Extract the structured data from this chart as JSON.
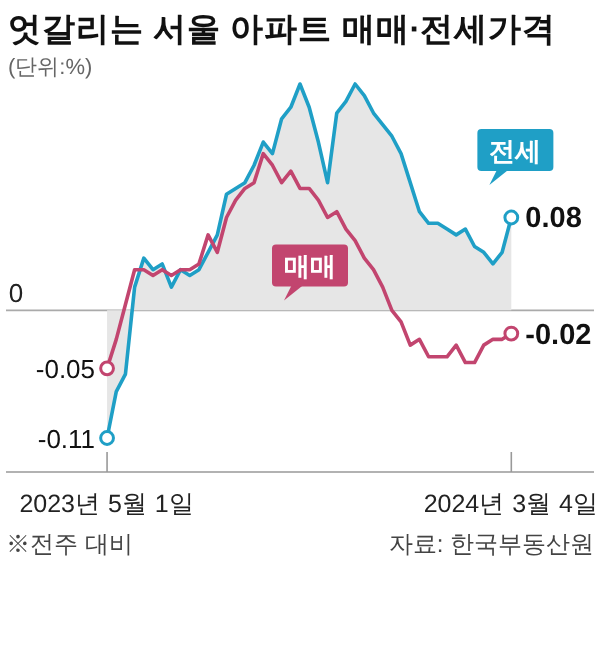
{
  "chart_data": {
    "type": "line",
    "title": "엇갈리는 서울 아파트 매매·전세가격",
    "subtitle": "(단위:%)",
    "x": [
      "2023-05-01",
      "2023-05-08",
      "2023-05-15",
      "2023-05-22",
      "2023-05-29",
      "2023-06-05",
      "2023-06-12",
      "2023-06-19",
      "2023-06-26",
      "2023-07-03",
      "2023-07-10",
      "2023-07-17",
      "2023-07-24",
      "2023-07-31",
      "2023-08-07",
      "2023-08-14",
      "2023-08-21",
      "2023-08-28",
      "2023-09-04",
      "2023-09-11",
      "2023-09-18",
      "2023-09-25",
      "2023-10-02",
      "2023-10-09",
      "2023-10-16",
      "2023-10-23",
      "2023-10-30",
      "2023-11-06",
      "2023-11-13",
      "2023-11-20",
      "2023-11-27",
      "2023-12-04",
      "2023-12-11",
      "2023-12-18",
      "2023-12-25",
      "2024-01-01",
      "2024-01-08",
      "2024-01-15",
      "2024-01-22",
      "2024-01-29",
      "2024-02-05",
      "2024-02-12",
      "2024-02-19",
      "2024-02-26",
      "2024-03-04"
    ],
    "series": [
      {
        "name": "전세",
        "type": "area",
        "color": "#1f9fc6",
        "values": [
          -0.11,
          -0.07,
          -0.055,
          0.02,
          0.045,
          0.035,
          0.04,
          0.02,
          0.035,
          0.03,
          0.035,
          0.05,
          0.065,
          0.1,
          0.105,
          0.11,
          0.125,
          0.145,
          0.135,
          0.165,
          0.175,
          0.195,
          0.175,
          0.145,
          0.11,
          0.17,
          0.18,
          0.195,
          0.185,
          0.17,
          0.16,
          0.15,
          0.135,
          0.11,
          0.085,
          0.075,
          0.075,
          0.07,
          0.065,
          0.07,
          0.055,
          0.05,
          0.04,
          0.05,
          0.08
        ],
        "value_labels": [
          "-0.11",
          null,
          null,
          null,
          null,
          null,
          null,
          null,
          null,
          null,
          null,
          null,
          null,
          null,
          null,
          null,
          null,
          null,
          null,
          null,
          null,
          null,
          null,
          null,
          null,
          null,
          null,
          null,
          null,
          null,
          null,
          null,
          null,
          null,
          null,
          null,
          null,
          null,
          null,
          null,
          null,
          null,
          null,
          null,
          "0.08"
        ]
      },
      {
        "name": "매매",
        "type": "line",
        "color": "#c2456f",
        "values": [
          -0.05,
          -0.025,
          0.005,
          0.035,
          0.035,
          0.03,
          0.035,
          0.03,
          0.035,
          0.035,
          0.04,
          0.065,
          0.05,
          0.08,
          0.095,
          0.105,
          0.11,
          0.135,
          0.125,
          0.11,
          0.12,
          0.105,
          0.105,
          0.095,
          0.08,
          0.085,
          0.07,
          0.06,
          0.045,
          0.035,
          0.02,
          0.0,
          -0.01,
          -0.03,
          -0.025,
          -0.04,
          -0.04,
          -0.04,
          -0.03,
          -0.045,
          -0.045,
          -0.03,
          -0.025,
          -0.025,
          -0.02
        ],
        "value_labels": [
          "-0.05",
          null,
          null,
          null,
          null,
          null,
          null,
          null,
          null,
          null,
          null,
          null,
          null,
          null,
          null,
          null,
          null,
          null,
          null,
          null,
          null,
          null,
          null,
          null,
          null,
          null,
          null,
          null,
          null,
          null,
          null,
          null,
          null,
          null,
          null,
          null,
          null,
          null,
          null,
          null,
          null,
          null,
          null,
          null,
          "-0.02"
        ]
      }
    ],
    "xlim": [
      "2023-02-13",
      "2024-05-06"
    ],
    "xticks": [
      {
        "value": "2023-05-01",
        "label": "2023년 5월 1일"
      },
      {
        "value": "2024-03-04",
        "label": "2024년 3월 4일"
      }
    ],
    "ref_lines": [
      {
        "axis": "y",
        "value": 0,
        "label": "0",
        "color": "#aaaaaa"
      }
    ],
    "annotations": [
      "※전주 대비",
      "자료: 한국부동산원"
    ]
  }
}
